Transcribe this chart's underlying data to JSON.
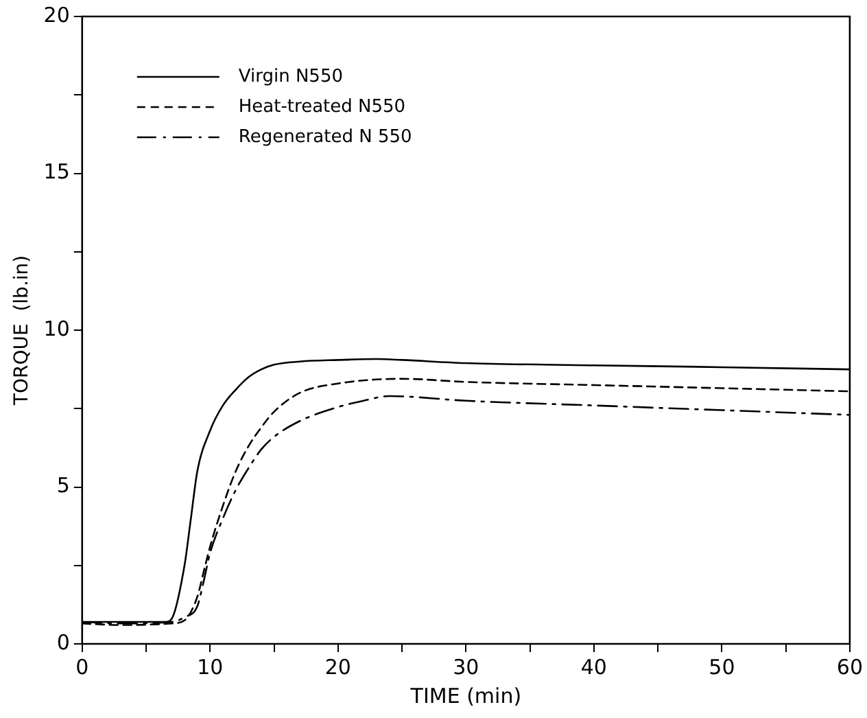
{
  "chart_data": {
    "type": "line",
    "xlabel": "TIME (min)",
    "ylabel": "TORQUE  (lb.in)",
    "xlim": [
      0,
      60
    ],
    "ylim": [
      0,
      20
    ],
    "xticks": [
      0,
      {
        "value": 5,
        "label": null
      },
      10,
      {
        "value": 15,
        "label": null
      },
      20,
      {
        "value": 25,
        "label": null
      },
      30,
      {
        "value": 35,
        "label": null
      },
      40,
      {
        "value": 45,
        "label": null
      },
      50,
      {
        "value": 55,
        "label": null
      },
      60
    ],
    "yticks": [
      0,
      {
        "value": 2.5,
        "label": null
      },
      5,
      {
        "value": 7.5,
        "label": null
      },
      10,
      {
        "value": 12.5,
        "label": null
      },
      15,
      {
        "value": 17.5,
        "label": null
      },
      20
    ],
    "grid": false,
    "legend": "top left",
    "marker": "none",
    "series": [
      {
        "name": "Virgin N550",
        "color": "#000000",
        "line_style": "solid",
        "x": [
          0,
          3,
          6.5,
          7,
          8,
          8.5,
          9,
          10,
          11,
          12,
          13,
          14,
          15,
          17,
          20,
          23,
          25,
          30,
          40,
          50,
          60
        ],
        "values": [
          0.7,
          0.7,
          0.7,
          0.8,
          2.5,
          4,
          5.5,
          6.8,
          7.6,
          8.1,
          8.5,
          8.75,
          8.9,
          9.0,
          9.05,
          9.08,
          9.05,
          8.95,
          8.88,
          8.82,
          8.75
        ]
      },
      {
        "name": "Heat-treated N550",
        "color": "#000000",
        "line_style": "dashed",
        "x": [
          0,
          3,
          7,
          8,
          9,
          9.5,
          10,
          11,
          12,
          13,
          14,
          15,
          17,
          20,
          25,
          30,
          40,
          50,
          60
        ],
        "values": [
          0.65,
          0.6,
          0.65,
          0.75,
          1.5,
          2.3,
          3.1,
          4.4,
          5.5,
          6.3,
          6.9,
          7.4,
          8.0,
          8.3,
          8.45,
          8.35,
          8.25,
          8.15,
          8.05
        ]
      },
      {
        "name": "Regenerated N 550",
        "color": "#000000",
        "line_style": "dashdot",
        "x": [
          0,
          3,
          7,
          8,
          9,
          9.5,
          10,
          11,
          12,
          13,
          14,
          15,
          17,
          20,
          22,
          24,
          30,
          40,
          50,
          60
        ],
        "values": [
          0.7,
          0.65,
          0.7,
          0.85,
          1.2,
          2.0,
          2.9,
          4.0,
          4.9,
          5.6,
          6.2,
          6.6,
          7.1,
          7.55,
          7.75,
          7.9,
          7.75,
          7.6,
          7.45,
          7.3
        ]
      }
    ]
  }
}
